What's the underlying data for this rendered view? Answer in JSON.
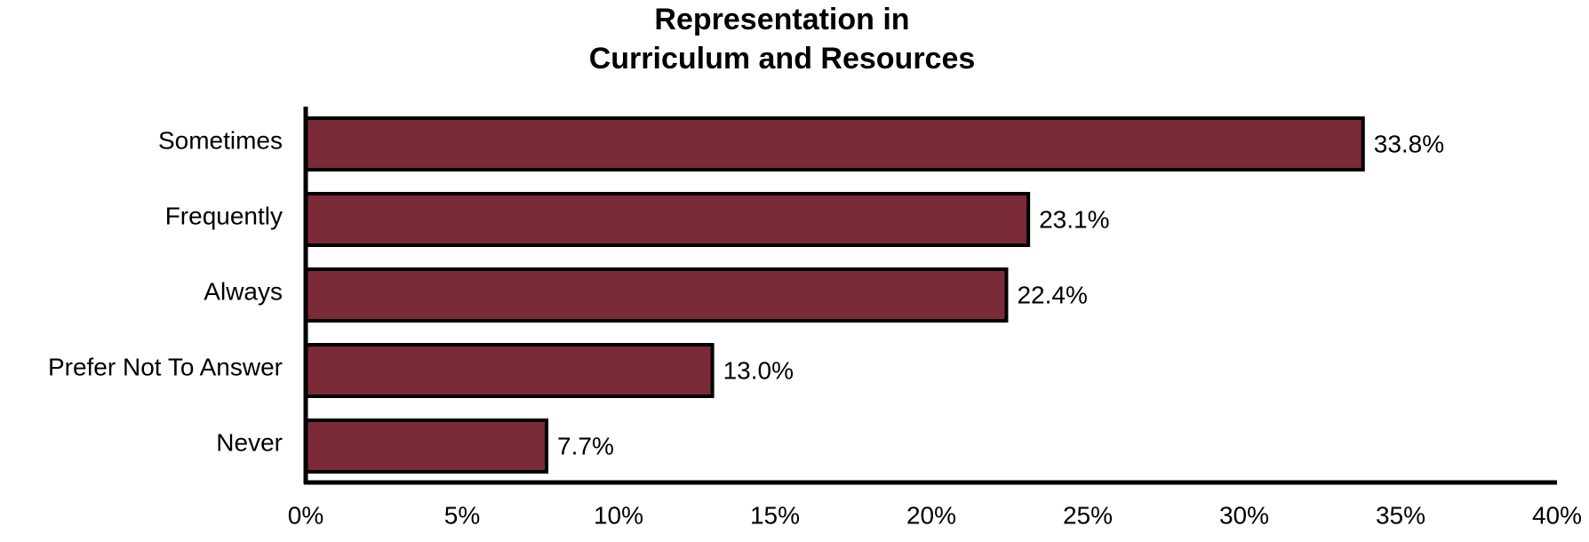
{
  "chart_data": {
    "type": "bar",
    "orientation": "horizontal",
    "title": [
      "Representation in",
      "Curriculum and Resources"
    ],
    "categories": [
      "Sometimes",
      "Frequently",
      "Always",
      "Prefer Not To Answer",
      "Never"
    ],
    "values": [
      33.8,
      23.1,
      22.4,
      13.0,
      7.7
    ],
    "value_labels": [
      "33.8%",
      "23.1%",
      "22.4%",
      "13.0%",
      "7.7%"
    ],
    "color": "#7b2a37",
    "xlim": [
      0,
      40
    ],
    "xticks": [
      {
        "value": 0,
        "label": "0%"
      },
      {
        "value": 5,
        "label": "5%"
      },
      {
        "value": 10,
        "label": "10%"
      },
      {
        "value": 15,
        "label": "15%"
      },
      {
        "value": 20,
        "label": "20%"
      },
      {
        "value": 25,
        "label": "25%"
      },
      {
        "value": 30,
        "label": "30%"
      },
      {
        "value": 35,
        "label": "35%"
      },
      {
        "value": 40,
        "label": "40%"
      }
    ],
    "grid": false
  }
}
